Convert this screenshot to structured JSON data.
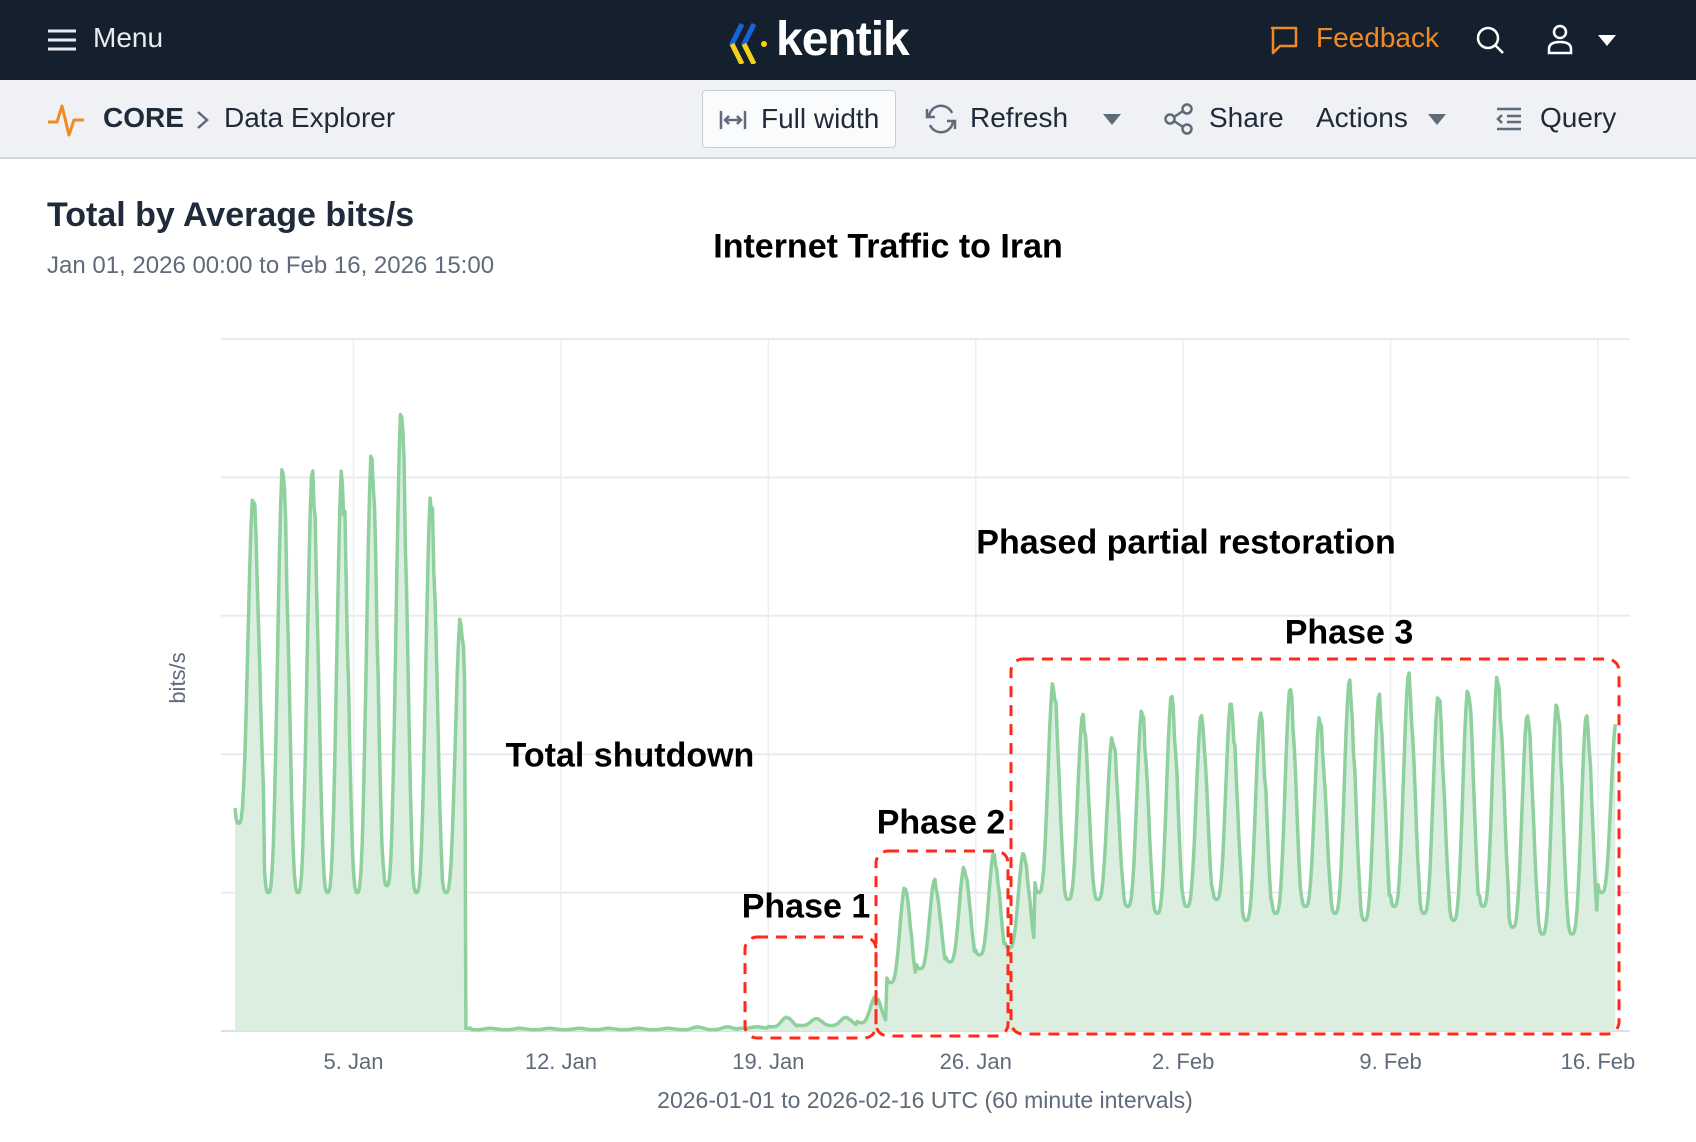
{
  "topnav": {
    "menu_label": "Menu",
    "logo_text": "kentik",
    "feedback_label": "Feedback"
  },
  "toolbar": {
    "app": "CORE",
    "page": "Data Explorer",
    "full_width": "Full width",
    "refresh": "Refresh",
    "share": "Share",
    "actions": "Actions",
    "query": "Query"
  },
  "colors": {
    "nav_bg": "#15202e",
    "accent": "#f08a24",
    "series": "#8fd19e",
    "fill": "#dbeedf",
    "phase_box": "#ff2a1a"
  },
  "panel": {
    "title": "Total by Average bits/s",
    "range": "Jan 01, 2026 00:00 to Feb 16, 2026 15:00"
  },
  "chart_data": {
    "type": "area",
    "title": "Internet Traffic to Iran",
    "ylabel": "bits/s",
    "xlabel": "2026-01-01 to 2026-02-16 UTC (60 minute intervals)",
    "x_ticks": [
      "5. Jan",
      "12. Jan",
      "19. Jan",
      "26. Jan",
      "2. Feb",
      "9. Feb",
      "16. Feb"
    ],
    "x_tick_days": [
      4,
      11,
      18,
      25,
      32,
      39,
      46
    ],
    "y_units": "relative (gridline divisions, unlabeled)",
    "ylim": [
      0,
      5
    ],
    "daily_start": "2026-01-01",
    "daily_peak": [
      3.9,
      4.14,
      4.09,
      4.13,
      4.24,
      4.55,
      3.93,
      3.03,
      0.02,
      0.02,
      0.02,
      0.02,
      0.02,
      0.02,
      0.02,
      0.03,
      0.03,
      0.03,
      0.1,
      0.09,
      0.1,
      0.25,
      1.05,
      1.1,
      1.2,
      1.3,
      1.3,
      2.55,
      2.3,
      2.15,
      2.35,
      2.45,
      2.3,
      2.4,
      2.3,
      2.5,
      2.3,
      2.55,
      2.45,
      2.6,
      2.45,
      2.5,
      2.6,
      2.3,
      2.4,
      2.3,
      2.25
    ],
    "daily_trough": [
      1.5,
      1.0,
      1.0,
      1.0,
      1.0,
      1.05,
      1.0,
      1.0,
      0.01,
      0.01,
      0.01,
      0.01,
      0.01,
      0.01,
      0.01,
      0.01,
      0.01,
      0.02,
      0.03,
      0.04,
      0.04,
      0.06,
      0.35,
      0.45,
      0.5,
      0.55,
      0.6,
      1.0,
      0.95,
      0.95,
      0.9,
      0.85,
      0.9,
      0.95,
      0.8,
      0.85,
      0.9,
      0.85,
      0.8,
      0.9,
      0.85,
      0.8,
      0.9,
      0.75,
      0.7,
      0.7,
      1.0
    ],
    "end_hour_last_day": 15,
    "annotations": [
      {
        "id": "shutdown",
        "text": "Total shutdown"
      },
      {
        "id": "restoration",
        "text": "Phased partial restoration"
      },
      {
        "id": "p1",
        "text": "Phase 1",
        "start_day": 18,
        "end_day": 22.4
      },
      {
        "id": "p2",
        "text": "Phase 2",
        "start_day": 22.4,
        "end_day": 26.9
      },
      {
        "id": "p3",
        "text": "Phase 3",
        "start_day": 27,
        "end_day": 46.7
      }
    ]
  }
}
